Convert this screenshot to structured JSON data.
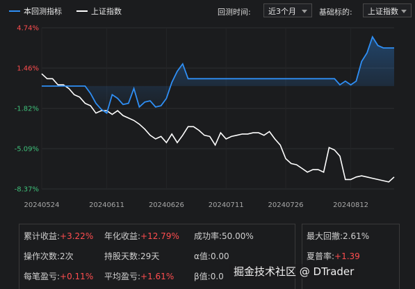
{
  "legend": {
    "strategy_label": "本回测指标",
    "strategy_color": "#2f8ff5",
    "benchmark_label": "上证指数",
    "benchmark_color": "#ffffff"
  },
  "controls": {
    "period_label": "回测时间:",
    "period_value": "近3个月",
    "benchmark_label": "基础标的:",
    "benchmark_value": "上证指数"
  },
  "chart_data": {
    "type": "line",
    "y_ticks": [
      {
        "label": "4.74%",
        "value": 4.74,
        "color": "#ff4d4f"
      },
      {
        "label": "1.46%",
        "value": 1.46,
        "color": "#ff4d4f"
      },
      {
        "label": "-1.82%",
        "value": -1.82,
        "color": "#3fc07a"
      },
      {
        "label": "-5.09%",
        "value": -5.09,
        "color": "#3fc07a"
      },
      {
        "label": "-8.37%",
        "value": -8.37,
        "color": "#3fc07a"
      }
    ],
    "ylim": [
      -8.37,
      4.74
    ],
    "x_ticks": [
      {
        "label": "20240524",
        "index": 0
      },
      {
        "label": "20240611",
        "index": 12
      },
      {
        "label": "20240626",
        "index": 23
      },
      {
        "label": "20240711",
        "index": 34
      },
      {
        "label": "20240726",
        "index": 45
      },
      {
        "label": "20240812",
        "index": 57
      }
    ],
    "n_points": 66,
    "grid": true,
    "series": [
      {
        "name": "本回测指标",
        "color": "#2f8ff5",
        "values": [
          0.0,
          0.0,
          0.0,
          0.0,
          0.0,
          0.0,
          0.0,
          0.0,
          0.0,
          -0.6,
          -1.4,
          -1.9,
          -2.2,
          -0.7,
          -1.0,
          -1.5,
          -1.4,
          -0.2,
          -1.7,
          -1.3,
          -1.2,
          -1.7,
          -1.6,
          -1.0,
          0.3,
          1.2,
          1.8,
          0.6,
          0.6,
          0.6,
          0.6,
          0.6,
          0.6,
          0.6,
          0.6,
          0.6,
          0.6,
          0.6,
          0.6,
          0.6,
          0.6,
          0.6,
          0.6,
          0.6,
          0.6,
          0.6,
          0.6,
          0.6,
          0.6,
          0.6,
          0.6,
          0.6,
          0.6,
          0.6,
          0.6,
          0.1,
          0.4,
          0.1,
          0.4,
          2.0,
          2.7,
          4.0,
          3.3,
          3.1,
          3.1,
          3.1
        ]
      },
      {
        "name": "上证指数",
        "color": "#ffffff",
        "values": [
          1.0,
          0.6,
          0.6,
          0.1,
          0.1,
          -0.2,
          -0.7,
          -0.9,
          -1.4,
          -1.6,
          -2.2,
          -2.0,
          -2.0,
          -2.3,
          -2.0,
          -2.4,
          -2.6,
          -2.8,
          -3.1,
          -3.5,
          -4.0,
          -4.3,
          -4.1,
          -4.6,
          -3.9,
          -4.6,
          -4.0,
          -3.3,
          -3.3,
          -3.6,
          -4.0,
          -4.1,
          -4.8,
          -3.8,
          -4.3,
          -4.1,
          -4.0,
          -3.9,
          -3.9,
          -3.8,
          -3.8,
          -4.0,
          -3.7,
          -4.3,
          -4.8,
          -5.9,
          -6.3,
          -6.4,
          -6.7,
          -7.0,
          -6.8,
          -6.8,
          -7.0,
          -5.0,
          -5.2,
          -5.7,
          -7.6,
          -7.6,
          -7.4,
          -7.3,
          -7.4,
          -7.5,
          -7.6,
          -7.7,
          -7.8,
          -7.4
        ]
      }
    ]
  },
  "stats": {
    "cumulative_return_label": "累计收益:",
    "cumulative_return_value": "+3.22%",
    "annual_return_label": "年化收益:",
    "annual_return_value": "+12.79%",
    "win_rate_label": "成功率:",
    "win_rate_value": "50.00%",
    "max_drawdown_label": "最大回撤:",
    "max_drawdown_value": "2.61%",
    "trades_label": "操作次数:",
    "trades_value": "2次",
    "hold_days_label": "持股天数:",
    "hold_days_value": "29天",
    "alpha_label": "α值:",
    "alpha_value": "0.00",
    "sharpe_label": "夏普率:",
    "sharpe_value": "+1.39",
    "per_trade_label": "每笔盈亏:",
    "per_trade_value": "+0.11%",
    "avg_pnl_label": "平均盈亏:",
    "avg_pnl_value": "+1.61%",
    "beta_label": "β值:",
    "beta_value": "0.0"
  },
  "watermark": "掘金技术社区 @ DTrader"
}
